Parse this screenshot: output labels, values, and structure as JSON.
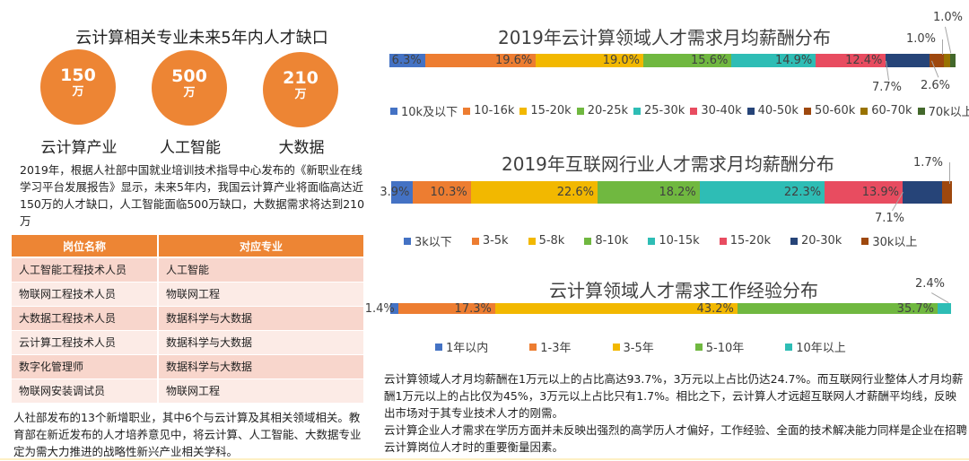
{
  "left": {
    "title": "云计算相关专业未来5年内人才缺口",
    "circles": [
      {
        "value": "150",
        "unit": "万",
        "label": "云计算产业"
      },
      {
        "value": "500",
        "unit": "万",
        "label": "人工智能"
      },
      {
        "value": "210",
        "unit": "万",
        "label": "大数据"
      }
    ],
    "circle_color": "#ed8534",
    "paragraph": "2019年，根据人社部中国就业培训技术指导中心发布的《新职业在线学习平台发展报告》显示，未来5年内，我国云计算产业将面临高达近150万的人才缺口，人工智能面临500万缺口，大数据需求将达到210万",
    "table": {
      "headers": [
        "岗位名称",
        "对应专业"
      ],
      "rows": [
        [
          "人工智能工程技术人员",
          "人工智能"
        ],
        [
          "物联网工程技术人员",
          "物联网工程"
        ],
        [
          "大数据工程技术人员",
          "数据科学与大数据"
        ],
        [
          "云计算工程技术人员",
          "数据科学与大数据"
        ],
        [
          "数字化管理师",
          "数据科学与大数据"
        ],
        [
          "物联网安装调试员",
          "物联网工程"
        ]
      ]
    },
    "footer_paragraph": "人社部发布的13个新增职业，其中6个与云计算及其相关领域相关。教育部在新近发布的人才培养意见中，将云计算、人工智能、大数据专业定为需大力推进的战略性新兴产业相关学科。"
  },
  "right": {
    "paragraph_1": "云计算领域人才月均薪酬在1万元以上的占比高达93.7%，3万元以上占比仍达24.7%。而互联网行业整体人才月均薪酬1万元以上的占比仅为45%，3万元以上占比只有1.7%。相比之下，云计算人才远超互联网人才薪酬平均线，反映出市场对于其专业技术人才的刚需。",
    "paragraph_2": "云计算企业人才需求在学历方面并未反映出强烈的高学历人才偏好，工作经验、全面的技术解决能力同样是企业在招聘云计算岗位人才时的重要衡量因素。"
  },
  "chart_data": [
    {
      "type": "bar",
      "subtype": "100% stacked horizontal",
      "title": "2019年云计算领域人才需求月均薪酬分布",
      "categories": [
        "10k及以下",
        "10-16k",
        "15-20k",
        "20-25k",
        "25-30k",
        "30-40k",
        "40-50k",
        "50-60k",
        "60-70k",
        "70k以上"
      ],
      "values": [
        6.3,
        19.6,
        19.0,
        15.6,
        14.9,
        12.4,
        7.7,
        2.6,
        1.0,
        1.0
      ],
      "labels": [
        "6.3%",
        "19.6%",
        "19.0%",
        "15.6%",
        "14.9%",
        "12.4%",
        "7.7%",
        "2.6%",
        "1.0%",
        "1.0%"
      ],
      "colors": [
        "#4472c4",
        "#ed7d31",
        "#f2b800",
        "#70b840",
        "#2ebdb5",
        "#e84c60",
        "#264478",
        "#9e480e",
        "#997300",
        "#43682b"
      ],
      "legend_position": "bottom",
      "xlabel": "",
      "ylabel": ""
    },
    {
      "type": "bar",
      "subtype": "100% stacked horizontal",
      "title": "2019年互联网行业人才需求月均薪酬分布",
      "categories": [
        "3k以下",
        "3-5k",
        "5-8k",
        "8-10k",
        "10-15k",
        "15-20k",
        "20-30k",
        "30k以上"
      ],
      "values": [
        3.9,
        10.3,
        22.6,
        18.2,
        22.3,
        13.9,
        7.1,
        1.7
      ],
      "labels": [
        "3.9%",
        "10.3%",
        "22.6%",
        "18.2%",
        "22.3%",
        "13.9%",
        "7.1%",
        "1.7%"
      ],
      "colors": [
        "#4472c4",
        "#ed7d31",
        "#f2b800",
        "#70b840",
        "#2ebdb5",
        "#e84c60",
        "#264478",
        "#9e480e"
      ],
      "legend_position": "bottom",
      "xlabel": "",
      "ylabel": ""
    },
    {
      "type": "bar",
      "subtype": "100% stacked horizontal",
      "title": "云计算领域人才需求工作经验分布",
      "categories": [
        "1年以内",
        "1-3年",
        "3-5年",
        "5-10年",
        "10年以上"
      ],
      "values": [
        1.4,
        17.3,
        43.2,
        35.7,
        2.4
      ],
      "labels": [
        "1.4%",
        "17.3%",
        "43.2%",
        "35.7%",
        "2.4%"
      ],
      "colors": [
        "#4472c4",
        "#ed7d31",
        "#f2b800",
        "#70b840",
        "#2ebdb5"
      ],
      "legend_position": "bottom",
      "xlabel": "",
      "ylabel": ""
    }
  ]
}
